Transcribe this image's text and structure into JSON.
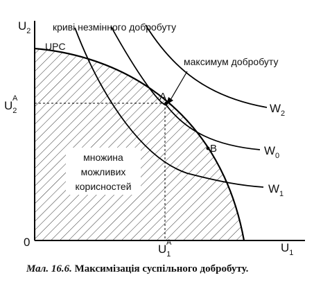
{
  "axes": {
    "y_main": "U",
    "y_sub": "2",
    "x_main": "U",
    "x_sub": "1",
    "origin": "0",
    "y_tick_main": "U",
    "y_tick_sub": "2",
    "y_tick_sup": "A",
    "x_tick_main": "U",
    "x_tick_sub": "1",
    "x_tick_sup": "A"
  },
  "labels": {
    "upc": "UPC",
    "indiff_curves": "криві незмінного добробуту",
    "max_welfare": "максимум добробуту",
    "set_line1": "множина",
    "set_line2": "можливих",
    "set_line3": "корисностей",
    "point_a": "A",
    "point_b": "B",
    "w2_main": "W",
    "w2_sub": "2",
    "w0_main": "W",
    "w0_sub": "0",
    "w1_main": "W",
    "w1_sub": "1"
  },
  "caption": {
    "prefix": "Мал. 16.6.",
    "text": " Максимізація суспільного добробуту."
  }
}
